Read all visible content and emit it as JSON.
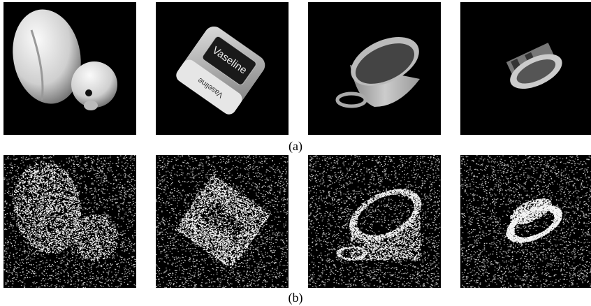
{
  "figure": {
    "panels": [
      {
        "label": "(a)"
      },
      {
        "label": "(b)"
      }
    ],
    "jar_label": "Vaseline"
  }
}
